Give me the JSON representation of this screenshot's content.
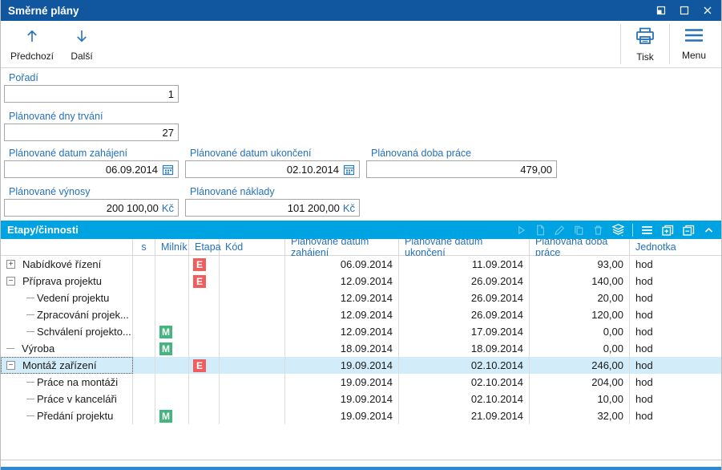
{
  "window": {
    "title": "Směrné plány",
    "controls": [
      {
        "name": "restore-icon"
      },
      {
        "name": "maximize-icon"
      },
      {
        "name": "close-icon"
      }
    ]
  },
  "toolbar": {
    "prev_label": "Předchozí",
    "next_label": "Další",
    "print_label": "Tisk",
    "menu_label": "Menu"
  },
  "form": {
    "poradi": {
      "label": "Pořadí",
      "value": "1"
    },
    "dny_trvani": {
      "label": "Plánované dny trvání",
      "value": "27"
    },
    "datum_zahajeni": {
      "label": "Plánované datum zahájení",
      "value": "06.09.2014"
    },
    "datum_ukonceni": {
      "label": "Plánované datum ukončení",
      "value": "02.10.2014"
    },
    "doba_prace": {
      "label": "Plánovaná doba práce",
      "value": "479,00"
    },
    "vynosy": {
      "label": "Plánované výnosy",
      "value": "200 100,00",
      "suffix": "Kč"
    },
    "naklady": {
      "label": "Plánované náklady",
      "value": "101 200,00",
      "suffix": "Kč"
    }
  },
  "panel": {
    "title": "Etapy/činnosti",
    "toolbar_icons": [
      {
        "name": "run-icon",
        "enabled": false
      },
      {
        "name": "new-document-icon",
        "enabled": false
      },
      {
        "name": "edit-pencil-icon",
        "enabled": false
      },
      {
        "name": "copy-icon",
        "enabled": false
      },
      {
        "name": "delete-trash-icon",
        "enabled": false
      },
      {
        "name": "layers-icon",
        "enabled": true
      },
      {
        "name": "separator",
        "enabled": false
      },
      {
        "name": "list-menu-icon",
        "enabled": true
      },
      {
        "name": "expand-all-icon",
        "enabled": true
      },
      {
        "name": "collapse-all-icon",
        "enabled": true
      },
      {
        "name": "collapse-panel-chevron-icon",
        "enabled": true
      }
    ]
  },
  "table": {
    "columns": [
      "",
      "s",
      "Milník",
      "Etapa",
      "Kód",
      "Plánované datum zahájení",
      "Plánované datum ukončení",
      "Plánovaná doba práce",
      "Jednotka"
    ],
    "rows": [
      {
        "name": "Nabídkové řízení",
        "level": 0,
        "expander": "plus",
        "milnik": "",
        "etapa": "E",
        "kod": "",
        "start": "06.09.2014",
        "end": "11.09.2014",
        "hours": "93,00",
        "unit": "hod",
        "selected": false
      },
      {
        "name": "Příprava projektu",
        "level": 0,
        "expander": "minus",
        "milnik": "",
        "etapa": "E",
        "kod": "",
        "start": "12.09.2014",
        "end": "26.09.2014",
        "hours": "140,00",
        "unit": "hod",
        "selected": false
      },
      {
        "name": "Vedení projektu",
        "level": 1,
        "expander": "child",
        "milnik": "",
        "etapa": "",
        "kod": "",
        "start": "12.09.2014",
        "end": "26.09.2014",
        "hours": "20,00",
        "unit": "hod",
        "selected": false
      },
      {
        "name": "Zpracování projek...",
        "level": 1,
        "expander": "child",
        "milnik": "",
        "etapa": "",
        "kod": "",
        "start": "12.09.2014",
        "end": "26.09.2014",
        "hours": "120,00",
        "unit": "hod",
        "selected": false
      },
      {
        "name": "Schválení projekto...",
        "level": 1,
        "expander": "child",
        "milnik": "M",
        "etapa": "",
        "kod": "",
        "start": "12.09.2014",
        "end": "17.09.2014",
        "hours": "0,00",
        "unit": "hod",
        "selected": false
      },
      {
        "name": "Výroba",
        "level": 0,
        "expander": "dash",
        "milnik": "M",
        "etapa": "",
        "kod": "",
        "start": "18.09.2014",
        "end": "18.09.2014",
        "hours": "0,00",
        "unit": "hod",
        "selected": false
      },
      {
        "name": "Montáž zařízení",
        "level": 0,
        "expander": "minus",
        "milnik": "",
        "etapa": "E",
        "kod": "",
        "start": "19.09.2014",
        "end": "02.10.2014",
        "hours": "246,00",
        "unit": "hod",
        "selected": true
      },
      {
        "name": "Práce na montáži",
        "level": 1,
        "expander": "child",
        "milnik": "",
        "etapa": "",
        "kod": "",
        "start": "19.09.2014",
        "end": "02.10.2014",
        "hours": "204,00",
        "unit": "hod",
        "selected": false
      },
      {
        "name": "Práce v kanceláři",
        "level": 1,
        "expander": "child",
        "milnik": "",
        "etapa": "",
        "kod": "",
        "start": "19.09.2014",
        "end": "02.10.2014",
        "hours": "10,00",
        "unit": "hod",
        "selected": false
      },
      {
        "name": "Předání projektu",
        "level": 1,
        "expander": "child",
        "milnik": "M",
        "etapa": "",
        "kod": "",
        "start": "19.09.2014",
        "end": "21.09.2014",
        "hours": "32,00",
        "unit": "hod",
        "selected": false
      }
    ]
  },
  "colors": {
    "titlebar": "#1157a0",
    "panel_header": "#00a3e1",
    "accent_blue": "#2571b8",
    "milestone_green": "#44b57e",
    "stage_red": "#ef5e5e",
    "selected_row": "#d3ecf9",
    "bottom_bar": "#2d89d3"
  }
}
